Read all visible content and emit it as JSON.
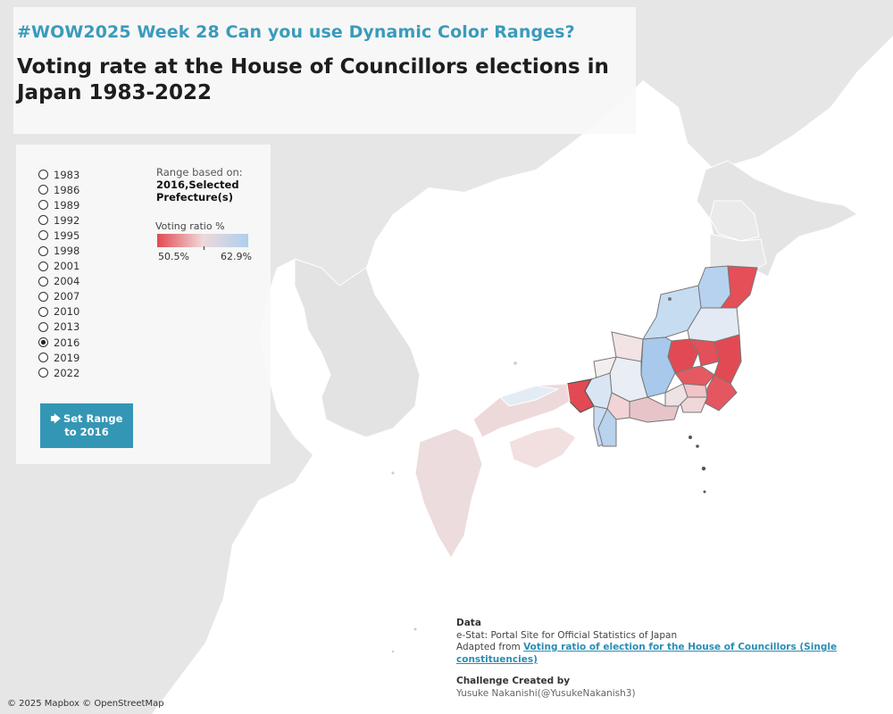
{
  "header": {
    "subtitle": "#WOW2025 Week 28 Can you use Dynamic Color Ranges?",
    "title": "Voting rate at the House of Councillors elections in Japan 1983-2022"
  },
  "years": {
    "options": [
      "1983",
      "1986",
      "1989",
      "1992",
      "1995",
      "1998",
      "2001",
      "2004",
      "2007",
      "2010",
      "2013",
      "2016",
      "2019",
      "2022"
    ],
    "selected": "2016"
  },
  "range": {
    "caption": "Range based on:",
    "value": "2016,Selected Prefecture(s)"
  },
  "legend": {
    "title": "Voting ratio %",
    "min_label": "50.5%",
    "max_label": "62.9%",
    "low_color": "#e24a53",
    "mid_color": "#efd8da",
    "high_color": "#aecfee"
  },
  "set_button": {
    "icon": "cursor-arrow-icon",
    "label": "Set Range to 2016"
  },
  "source": {
    "data_heading": "Data",
    "line1": "e-Stat: Portal Site for Official Statistics of Japan",
    "adapted_prefix": "Adapted from",
    "link_text": "Voting ratio of election for the House of Councillors (Single constituencies)",
    "credit_heading": "Challenge Created by",
    "credit_name": "Yusuke Nakanishi(@YusukeNakanish3)"
  },
  "attribution": "© 2025 Mapbox © OpenStreetMap",
  "map_colors": {
    "land": "#e5e5e5",
    "sea": "#ffffff",
    "neutral_prefecture": "#eaeaea",
    "red": "#e24a53",
    "light_red": "#f0b8bb",
    "pale": "#f0dfe0",
    "light_blue": "#b9d4ee",
    "blue": "#a8c8ec"
  }
}
